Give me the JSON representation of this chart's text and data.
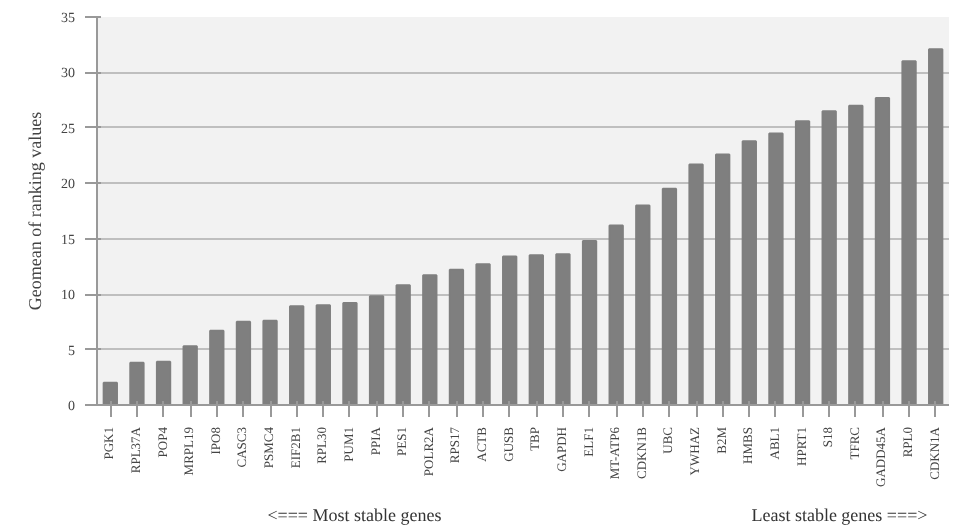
{
  "chart_data": {
    "type": "bar",
    "ylabel": "Geomean of ranking values",
    "categories": [
      "PGK1",
      "RPL37A",
      "POP4",
      "MRPL19",
      "IPO8",
      "CASC3",
      "PSMC4",
      "EIF2B1",
      "RPL30",
      "PUM1",
      "PPIA",
      "PES1",
      "POLR2A",
      "RPS17",
      "ACTB",
      "GUSB",
      "TBP",
      "GAPDH",
      "ELF1",
      "MT-ATP6",
      "CDKN1B",
      "UBC",
      "YWHAZ",
      "B2M",
      "HMBS",
      "ABL1",
      "HPRT1",
      "S18",
      "TFRC",
      "GADD45A",
      "RPL0",
      "CDKN1A"
    ],
    "values": [
      2.0,
      3.8,
      3.9,
      5.3,
      6.7,
      7.5,
      7.6,
      8.9,
      9.0,
      9.2,
      9.8,
      10.8,
      11.7,
      12.2,
      12.7,
      13.4,
      13.5,
      13.6,
      14.8,
      16.2,
      18.0,
      19.5,
      21.7,
      22.6,
      23.8,
      24.5,
      25.6,
      26.5,
      27.0,
      27.7,
      31.0,
      32.1
    ],
    "color": "#7f7f7f",
    "ylim": [
      0,
      35
    ],
    "yticks": [
      0,
      5,
      10,
      15,
      20,
      25,
      30,
      35
    ],
    "grid": "y",
    "annotations": [
      "<===  Most stable genes",
      "Least stable genes  ===>"
    ]
  }
}
